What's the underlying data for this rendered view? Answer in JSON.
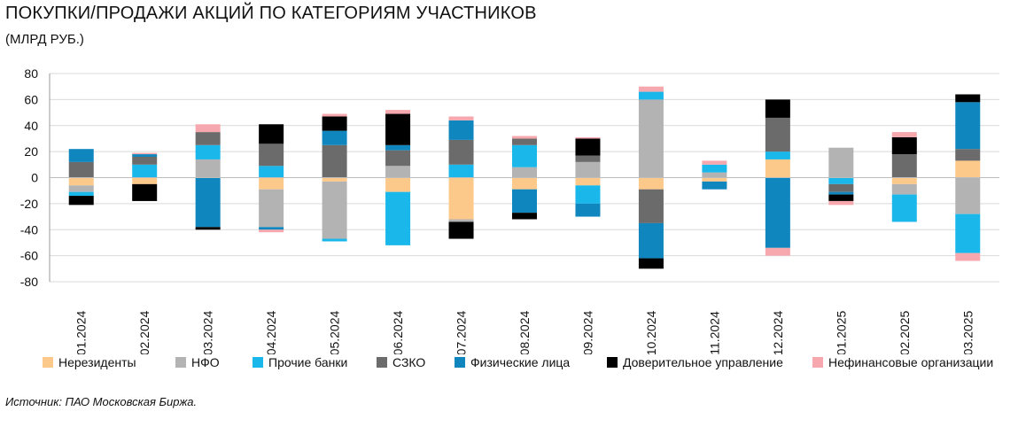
{
  "title": "ПОКУПКИ/ПРОДАЖИ АКЦИЙ ПО КАТЕГОРИЯМ УЧАСТНИКОВ",
  "subtitle": "(МЛРД РУБ.)",
  "source": "Источник: ПАО Московская Биржа.",
  "chart_data": {
    "type": "bar",
    "stacked": true,
    "title": "ПОКУПКИ/ПРОДАЖИ АКЦИЙ ПО КАТЕГОРИЯМ УЧАСТНИКОВ",
    "subtitle": "(МЛРД РУБ.)",
    "ylim": [
      -80,
      80
    ],
    "yticks": [
      -80,
      -60,
      -40,
      -20,
      0,
      20,
      40,
      60,
      80
    ],
    "grid": true,
    "legend_position": "bottom",
    "categories": [
      "01.2024",
      "02.2024",
      "03.2024",
      "04.2024",
      "05.2024",
      "06.2024",
      "07.2024",
      "08.2024",
      "09.2024",
      "10.2024",
      "11.2024",
      "12.2024",
      "01.2025",
      "02.2025",
      "03.2025"
    ],
    "series": [
      {
        "name": "Нерезиденты",
        "color": "#FDC98A",
        "values": [
          -6,
          -5,
          0,
          -9,
          -3,
          -11,
          -32,
          -9,
          -6,
          -9,
          -3,
          14,
          0,
          -5,
          13
        ]
      },
      {
        "name": "НФО",
        "color": "#B3B3B3",
        "values": [
          -5,
          0,
          14,
          -29,
          -44,
          9,
          -2,
          8,
          12,
          60,
          4,
          0,
          23,
          -8,
          -28
        ]
      },
      {
        "name": "Прочие банки",
        "color": "#19B7EA",
        "values": [
          -3,
          10,
          11,
          9,
          -2,
          -41,
          10,
          17,
          -14,
          6,
          6,
          6,
          -5,
          -21,
          -30
        ]
      },
      {
        "name": "СЗКО",
        "color": "#6B6B6B",
        "values": [
          12,
          6,
          10,
          17,
          25,
          12,
          19,
          5,
          5,
          -26,
          0,
          26,
          -6,
          18,
          9
        ]
      },
      {
        "name": "Физические лица",
        "color": "#0F86BE",
        "values": [
          10,
          2,
          -38,
          -2,
          11,
          4,
          15,
          -18,
          -10,
          -27,
          -6,
          -54,
          -2,
          0,
          36
        ]
      },
      {
        "name": "Доверительное управление",
        "color": "#000000",
        "values": [
          -7,
          -13,
          -2,
          15,
          11,
          24,
          -13,
          -5,
          13,
          -8,
          0,
          14,
          -5,
          13,
          6
        ]
      },
      {
        "name": "Нефинансовые организации",
        "color": "#F6A8AE",
        "values": [
          0,
          1,
          6,
          -2,
          2,
          3,
          3,
          2,
          1,
          4,
          3,
          -6,
          -3,
          4,
          -6
        ]
      }
    ]
  }
}
